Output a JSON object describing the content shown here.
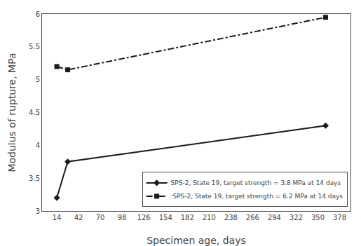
{
  "chart_data": {
    "type": "line",
    "xlabel": "Specimen age, days",
    "ylabel": "Modulus of rupture, MPa",
    "series": [
      {
        "name": "SPS-2, State 19, target strength = 3.8 MPa at 14 days",
        "x": [
          14,
          28,
          360
        ],
        "values": [
          3.2,
          3.75,
          4.3
        ],
        "color": "#1a1a1a",
        "marker": "diamond",
        "line_style": "solid"
      },
      {
        "name": "·SPS-2, State 19, target strength = 6.2 MPa at 14 days",
        "x": [
          14,
          28,
          360
        ],
        "values": [
          5.2,
          5.15,
          5.95
        ],
        "color": "#1a1a1a",
        "marker": "square",
        "line_style": "dashdot"
      }
    ],
    "xlim": [
      -5,
      392
    ],
    "ylim": [
      3.0,
      6.0
    ],
    "xticks": [
      14,
      42,
      70,
      98,
      126,
      154,
      182,
      210,
      238,
      266,
      294,
      322,
      350,
      378
    ],
    "yticks": [
      3,
      3.5,
      4,
      4.5,
      5,
      5.5,
      6
    ],
    "legend": "lower right",
    "grid": false
  }
}
